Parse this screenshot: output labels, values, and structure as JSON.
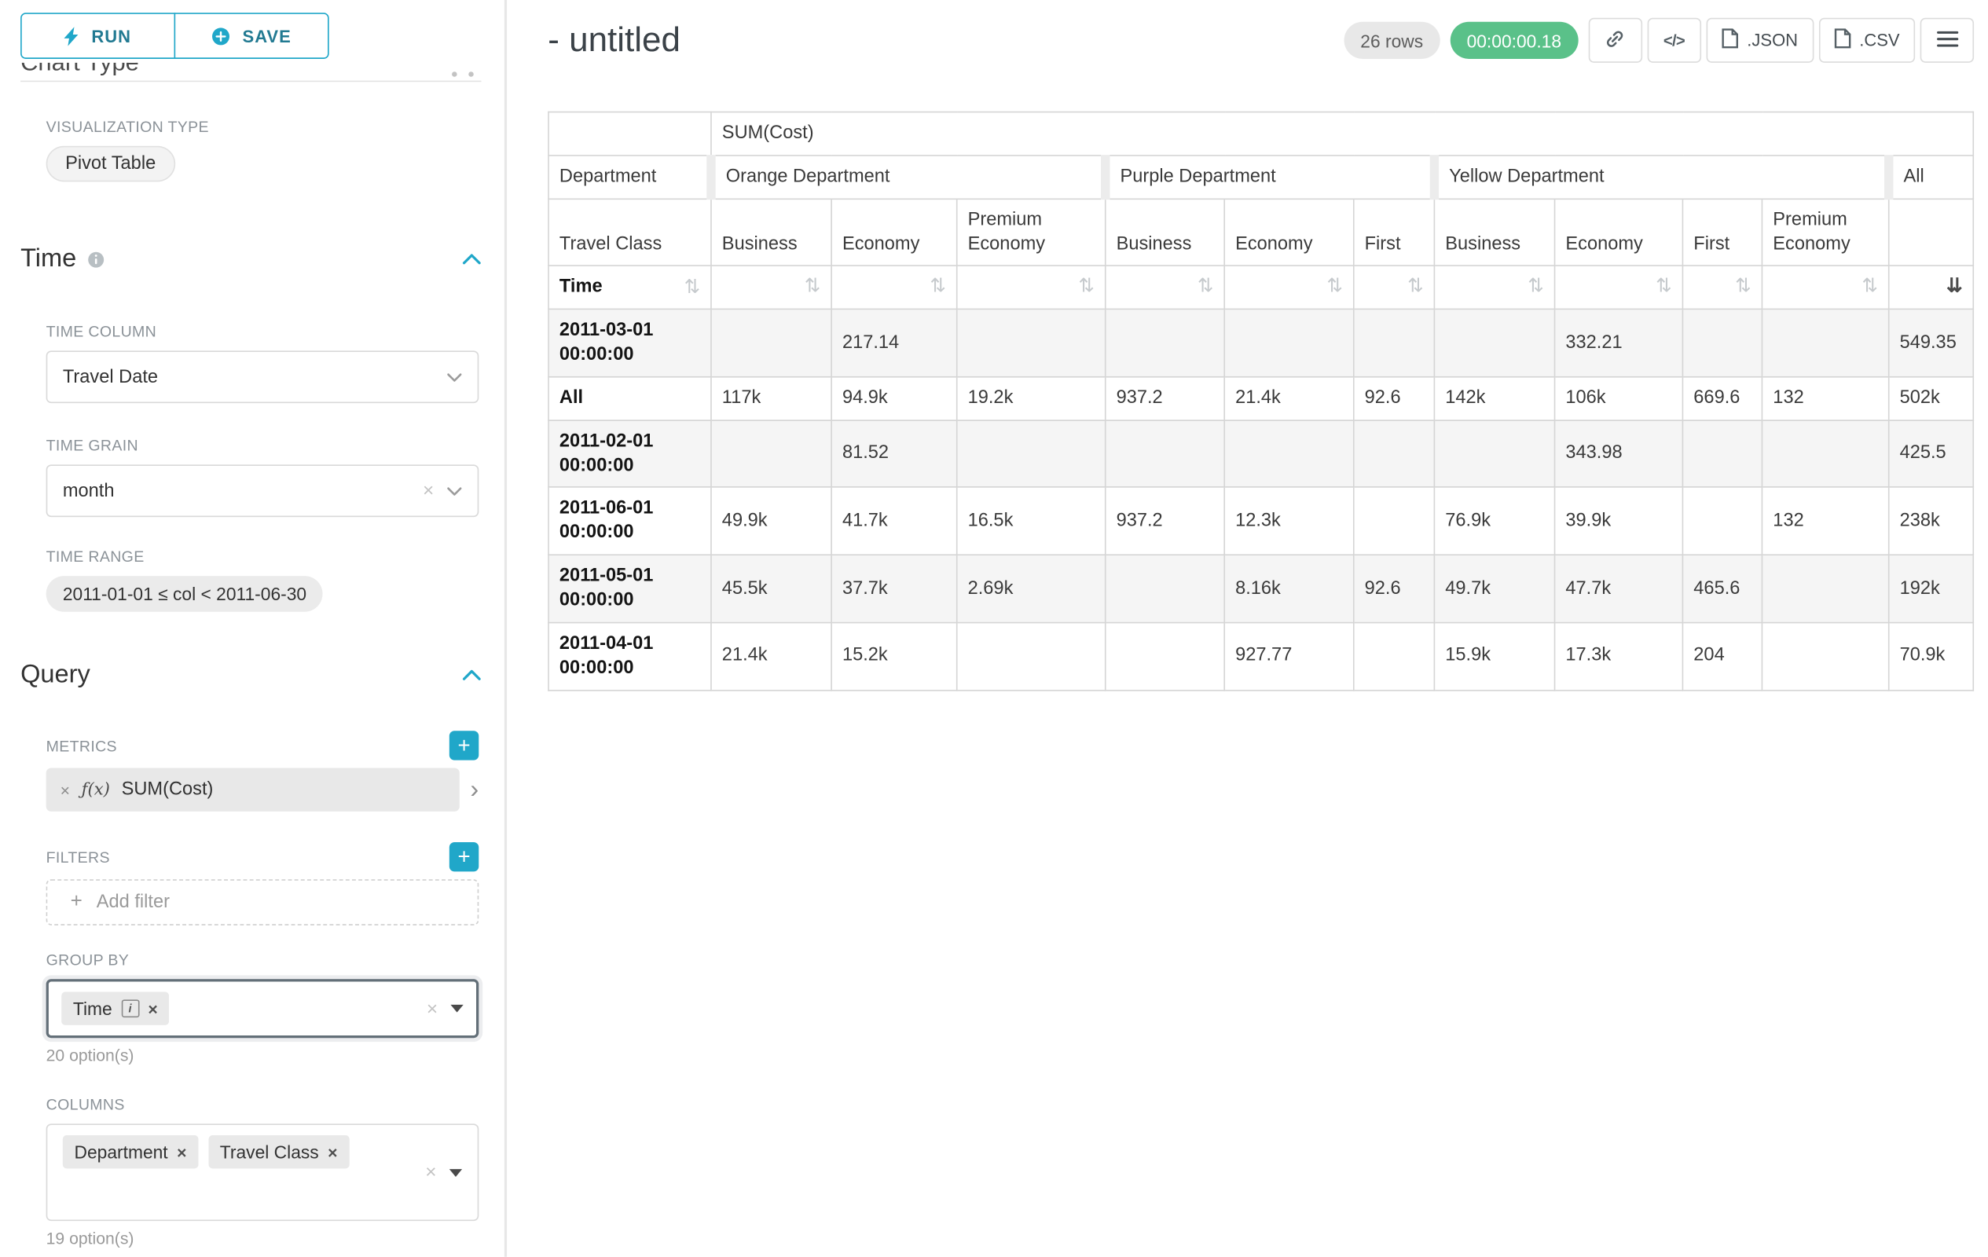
{
  "colors": {
    "accent": "#20a7c9",
    "timer_badge_bg": "#5ac189",
    "rows_badge_bg": "#e8e8e8"
  },
  "icons": {
    "run": "lightning-bolt-icon",
    "save": "plus-circle-icon",
    "section_collapse": "chevron-up-icon",
    "select_open": "chevron-down-icon",
    "query_link": "link-icon",
    "menu": "hamburger-icon",
    "download_file": "file-icon",
    "sort_neutral": "⇅",
    "sort_active": "⇊",
    "add_plus": "+",
    "remove": "×",
    "clear": "×",
    "caret_right": "›",
    "info_letter": "i"
  },
  "sidebar": {
    "run_label": "RUN",
    "save_label": "SAVE",
    "chart_type_heading": "Chart Type",
    "visualization_type_label": "VISUALIZATION TYPE",
    "visualization_type_value": "Pivot Table",
    "time_section": {
      "title": "Time",
      "time_column_label": "TIME COLUMN",
      "time_column_value": "Travel Date",
      "time_grain_label": "TIME GRAIN",
      "time_grain_value": "month",
      "time_range_label": "TIME RANGE",
      "time_range_value": "2011-01-01 ≤ col < 2011-06-30"
    },
    "query_section": {
      "title": "Query",
      "metrics_label": "METRICS",
      "metric_fx": "ƒ(x)",
      "metric_name": "SUM(Cost)",
      "filters_label": "FILTERS",
      "add_filter_label": "Add filter",
      "group_by_label": "GROUP BY",
      "group_by_chips": [
        "Time"
      ],
      "group_by_hint": "20 option(s)",
      "columns_label": "COLUMNS",
      "columns_chips": [
        "Department",
        "Travel Class"
      ],
      "columns_hint": "19 option(s)"
    }
  },
  "header": {
    "title": "- untitled",
    "rows_badge": "26 rows",
    "timer_badge": "00:00:00.18",
    "code_icon_label": "</>",
    "json_label": ".JSON",
    "csv_label": ".CSV"
  },
  "chart_data": {
    "type": "table",
    "metric_header": "SUM(Cost)",
    "col_dimension_label": "Department",
    "row_dimension_label": "Travel Class",
    "row_axis_label": "Time",
    "sorted_column": "All",
    "sort_direction": "descending",
    "column_groups": [
      {
        "label": "Orange Department",
        "columns": [
          "Business",
          "Economy",
          "Premium Economy"
        ]
      },
      {
        "label": "Purple Department",
        "columns": [
          "Business",
          "Economy",
          "First"
        ]
      },
      {
        "label": "Yellow Department",
        "columns": [
          "Business",
          "Economy",
          "First",
          "Premium Economy"
        ]
      },
      {
        "label": "All",
        "columns": [
          ""
        ]
      }
    ],
    "rows": [
      {
        "label": "2011-03-01 00:00:00",
        "values": [
          "",
          "217.14",
          "",
          "",
          "",
          "",
          "",
          "332.21",
          "",
          "",
          "549.35"
        ]
      },
      {
        "label": "All",
        "values": [
          "117k",
          "94.9k",
          "19.2k",
          "937.2",
          "21.4k",
          "92.6",
          "142k",
          "106k",
          "669.6",
          "132",
          "502k"
        ]
      },
      {
        "label": "2011-02-01 00:00:00",
        "values": [
          "",
          "81.52",
          "",
          "",
          "",
          "",
          "",
          "343.98",
          "",
          "",
          "425.5"
        ]
      },
      {
        "label": "2011-06-01 00:00:00",
        "values": [
          "49.9k",
          "41.7k",
          "16.5k",
          "937.2",
          "12.3k",
          "",
          "76.9k",
          "39.9k",
          "",
          "132",
          "238k"
        ]
      },
      {
        "label": "2011-05-01 00:00:00",
        "values": [
          "45.5k",
          "37.7k",
          "2.69k",
          "",
          "8.16k",
          "92.6",
          "49.7k",
          "47.7k",
          "465.6",
          "",
          "192k"
        ]
      },
      {
        "label": "2011-04-01 00:00:00",
        "values": [
          "21.4k",
          "15.2k",
          "",
          "",
          "927.77",
          "",
          "15.9k",
          "17.3k",
          "204",
          "",
          "70.9k"
        ]
      }
    ]
  }
}
